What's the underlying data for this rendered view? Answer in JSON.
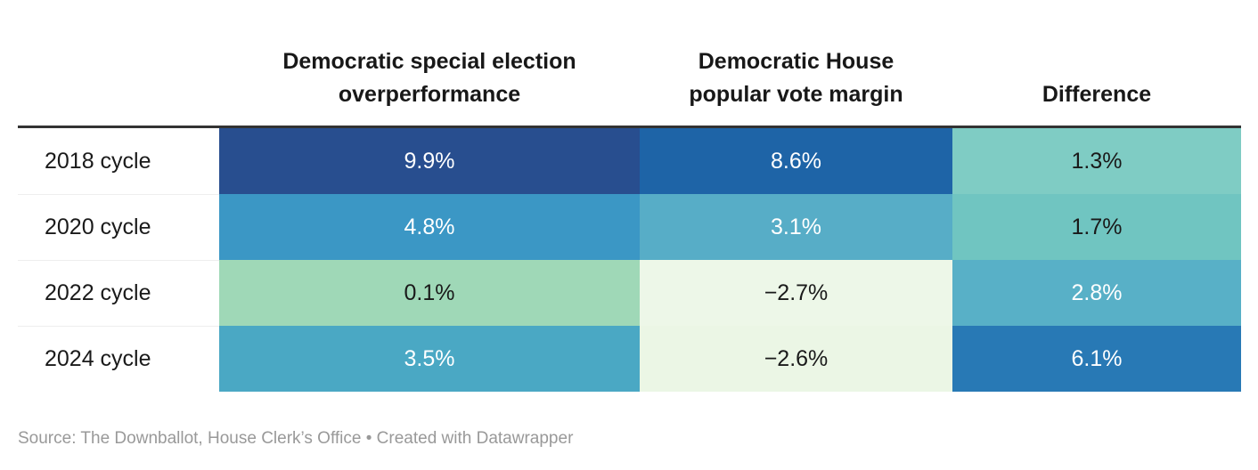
{
  "table": {
    "columns": [
      {
        "label": ""
      },
      {
        "label": "Democratic special election\noverperformance"
      },
      {
        "label": "Democratic House\npopular vote margin"
      },
      {
        "label": "Difference"
      }
    ],
    "rows": [
      {
        "label": "2018 cycle",
        "cells": [
          {
            "value": "9.9%",
            "bg": "#284e8f",
            "fg": "#ffffff"
          },
          {
            "value": "8.6%",
            "bg": "#1e64a7",
            "fg": "#ffffff"
          },
          {
            "value": "1.3%",
            "bg": "#7fccc4",
            "fg": "#1a1a1a"
          }
        ]
      },
      {
        "label": "2020 cycle",
        "cells": [
          {
            "value": "4.8%",
            "bg": "#3b97c5",
            "fg": "#ffffff"
          },
          {
            "value": "3.1%",
            "bg": "#57adc7",
            "fg": "#ffffff"
          },
          {
            "value": "1.7%",
            "bg": "#70c5c1",
            "fg": "#1a1a1a"
          }
        ]
      },
      {
        "label": "2022 cycle",
        "cells": [
          {
            "value": "0.1%",
            "bg": "#9fd8b7",
            "fg": "#1a1a1a"
          },
          {
            "value": "−2.7%",
            "bg": "#edf7e8",
            "fg": "#1a1a1a"
          },
          {
            "value": "2.8%",
            "bg": "#58b0c7",
            "fg": "#ffffff"
          }
        ]
      },
      {
        "label": "2024 cycle",
        "cells": [
          {
            "value": "3.5%",
            "bg": "#4aa8c4",
            "fg": "#ffffff"
          },
          {
            "value": "−2.6%",
            "bg": "#ebf6e5",
            "fg": "#1a1a1a"
          },
          {
            "value": "6.1%",
            "bg": "#2879b5",
            "fg": "#ffffff"
          }
        ]
      }
    ]
  },
  "footer": {
    "source_text": "Source: The Downballot, House Clerk’s Office • Created with Datawrapper"
  },
  "colors": {
    "header_rule": "#333333",
    "row_separator": "#eeeeee",
    "header_text": "#181818",
    "source_text": "#999999"
  },
  "chart_data": {
    "type": "table",
    "subtype": "heatmap-table",
    "categories": [
      "2018 cycle",
      "2020 cycle",
      "2022 cycle",
      "2024 cycle"
    ],
    "series": [
      {
        "name": "Democratic special election overperformance",
        "values": [
          9.9,
          4.8,
          0.1,
          3.5
        ]
      },
      {
        "name": "Democratic House popular vote margin",
        "values": [
          8.6,
          3.1,
          -2.7,
          -2.6
        ]
      },
      {
        "name": "Difference",
        "values": [
          1.3,
          1.7,
          2.8,
          6.1
        ]
      }
    ],
    "value_format": "percent",
    "cell_shading": "diverging blue-green heatmap (high = dark blue, low/negative = pale green)",
    "source": "The Downballot, House Clerk’s Office",
    "tool": "Created with Datawrapper"
  }
}
